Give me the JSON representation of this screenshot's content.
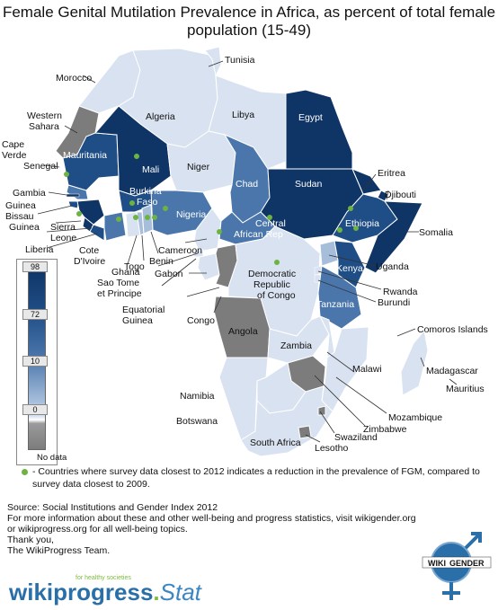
{
  "title": "Female Genital Mutilation Prevalence in Africa, as percent of total female population (15-49)",
  "legend": {
    "ticks": [
      "98",
      "72",
      "10",
      "0"
    ],
    "no_data": "No data",
    "colors": {
      "high": "#0f3466",
      "mid_high": "#1f4d85",
      "mid": "#4a76ab",
      "low": "#a7bedb",
      "very_low": "#d9e2f0",
      "no_data": "#7c7c7c"
    }
  },
  "countries": {
    "morocco": "Morocco",
    "western_sahara_1": "Western",
    "western_sahara_2": "Sahara",
    "algeria": "Algeria",
    "tunisia": "Tunisia",
    "libya": "Libya",
    "egypt": "Egypt",
    "cape_verde_1": "Cape",
    "cape_verde_2": "Verde",
    "senegal": "Senegal",
    "mauritania": "Mauritania",
    "mali": "Mali",
    "niger": "Niger",
    "chad": "Chad",
    "sudan": "Sudan",
    "eritrea": "Eritrea",
    "djibouti": "Djibouti",
    "gambia": "Gambia",
    "guinea_bissau_1": "Guinea",
    "guinea_bissau_2": "Bissau",
    "guinea": "Guinea",
    "sierra_leone_1": "Sierra",
    "sierra_leone_2": "Leone",
    "liberia": "Liberia",
    "burkina_faso_1": "Burkina",
    "burkina_faso_2": "Faso",
    "nigeria": "Nigeria",
    "ethiopia": "Ethiopia",
    "somalia": "Somalia",
    "car_1": "Central",
    "car_2": "African Rep",
    "cote_divoire_1": "Cote",
    "cote_divoire_2": "D'Ivoire",
    "ghana": "Ghana",
    "togo": "Togo",
    "benin": "Benin",
    "cameroon": "Cameroon",
    "uganda": "Uganda",
    "kenya": "Kenya",
    "drc_1": "Democratic",
    "drc_2": "Republic",
    "drc_3": "of Congo",
    "sao_tome_1": "Sao Tome",
    "sao_tome_2": "et Principe",
    "gabon": "Gabon",
    "eq_guinea_1": "Equatorial",
    "eq_guinea_2": "Guinea",
    "congo": "Congo",
    "rwanda": "Rwanda",
    "burundi": "Burundi",
    "tanzania": "Tanzania",
    "comoros": "Comoros Islands",
    "angola": "Angola",
    "zambia": "Zambia",
    "malawi": "Malawi",
    "madagascar": "Madagascar",
    "mauritius": "Mauritius",
    "namibia": "Namibia",
    "mozambique": "Mozambique",
    "zimbabwe": "Zimbabwe",
    "botswana": "Botswana",
    "swaziland": "Swaziland",
    "south_africa": "South Africa",
    "lesotho": "Lesotho"
  },
  "reduction_note": "- Countries where survey data closest to 2012 indicates a reduction in the prevalence of FGM, compared to survey data closest to 2009.",
  "source_lines": [
    "Source: Social Institutions and Gender Index 2012",
    "For more information about these and other well-being and progress statistics, visit wikigender.org",
    "or wikiprogress.org for all well-being topics.",
    "Thank you,",
    "The WikiProgress Team."
  ],
  "logo": {
    "wiki": "wiki",
    "progress": "progress",
    "stat": "Stat",
    "tagline": "for healthy societies"
  },
  "gender_logo": {
    "wiki": "WIKI",
    "gender": "GENDER"
  }
}
